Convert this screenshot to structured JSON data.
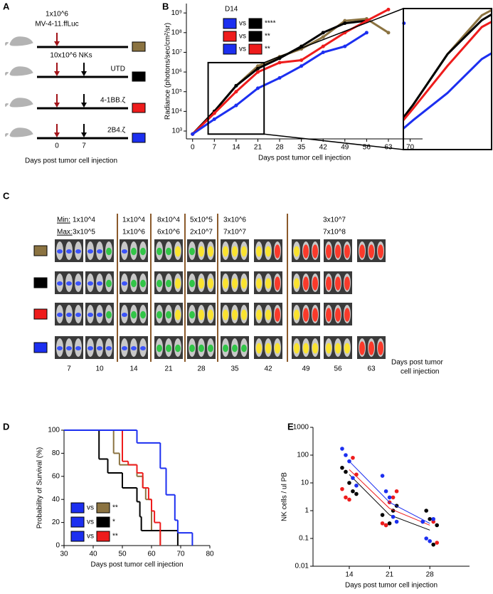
{
  "panel_labels": [
    "A",
    "B",
    "C",
    "D",
    "E"
  ],
  "schematic": {
    "dose": "1x10^6",
    "tumor": "MV-4-11.ffLuc",
    "rows": [
      {
        "label": "10x10^6 NKs",
        "color": "#8b7341"
      },
      {
        "label": "UTD",
        "color": "#000000"
      },
      {
        "label": "4-1BB.ζ",
        "color": "#ee1c1c"
      },
      {
        "label": "2B4.ζ",
        "color": "#1c2ff0"
      }
    ],
    "ticks": [
      "0",
      "7"
    ],
    "x_label": "Days post tumor cell injection"
  },
  "imaging": {
    "min_label": "Min:",
    "max_label": "Max:",
    "scales": [
      {
        "min": "1x10^4",
        "max": "3x10^5"
      },
      {
        "min": "1x10^4",
        "max": "1x10^6"
      },
      {
        "min": "8x10^4",
        "max": "6x10^6"
      },
      {
        "min": "5x10^5",
        "max": "2x10^7"
      },
      {
        "min": "3x10^6",
        "max": "7x10^7"
      },
      {
        "min": "3x10^7",
        "max": "7x10^8"
      }
    ],
    "days": [
      "7",
      "10",
      "14",
      "21",
      "28",
      "35",
      "42",
      "49",
      "56",
      "63"
    ],
    "row_colors": [
      "#8b7341",
      "#000000",
      "#ee1c1c",
      "#1c2ff0"
    ],
    "x_label": [
      "Days post tumor",
      "cell injection"
    ]
  },
  "chart_data": [
    {
      "type": "line",
      "y_label": "Radiance (photons/sec/cm²/sr)",
      "x_label": "Days post tumor cell injection",
      "x": [
        0,
        7,
        14,
        21,
        28,
        35,
        42,
        49,
        56,
        63,
        68
      ],
      "series": [
        {
          "color": "#8b7341",
          "values": [
            700,
            10000,
            200000,
            2000000,
            6000000,
            15000000,
            60000000,
            400000000,
            500000000,
            100000000,
            null
          ]
        },
        {
          "color": "#000000",
          "values": [
            700,
            10000,
            200000,
            1500000,
            5000000,
            20000000,
            100000000,
            300000000,
            400000000,
            null,
            null
          ]
        },
        {
          "color": "#ee1c1c",
          "values": [
            700,
            8000,
            100000,
            1000000,
            3000000,
            4000000,
            20000000,
            100000000,
            400000000,
            1500000000,
            null
          ]
        },
        {
          "color": "#1c2ff0",
          "values": [
            700,
            4000,
            20000,
            150000,
            500000,
            2000000,
            10000000,
            20000000,
            100000000,
            null,
            300000000
          ]
        }
      ],
      "xlim": [
        -2,
        74
      ],
      "xticks": [
        0,
        7,
        14,
        21,
        28,
        35,
        42,
        49,
        56,
        63,
        70
      ],
      "ylim": [
        400,
        3000000000
      ],
      "log_y": true,
      "yticks": [
        {
          "value": 1000,
          "label": "10³"
        },
        {
          "value": 10000,
          "label": "10⁴"
        },
        {
          "value": 100000,
          "label": "10⁵"
        },
        {
          "value": 1000000,
          "label": "10⁶"
        },
        {
          "value": 10000000,
          "label": "10⁷"
        },
        {
          "value": 100000000,
          "label": "10⁸"
        },
        {
          "value": 1000000000,
          "label": "10⁹"
        }
      ],
      "zoom_xlim": [
        5,
        23
      ],
      "zoom_ylim": [
        700,
        3000000
      ],
      "legend_title": "D14",
      "comparison_word": "vs",
      "comparisons": [
        {
          "colors": [
            "#1c2ff0",
            "#000000"
          ],
          "label": "****"
        },
        {
          "colors": [
            "#ee1c1c",
            "#000000"
          ],
          "label": "**"
        },
        {
          "colors": [
            "#1c2ff0",
            "#ee1c1c"
          ],
          "label": "**"
        }
      ]
    },
    {
      "type": "step",
      "y_label": "Probability of Survival (%)",
      "x_label": "Days post tumor cell injection",
      "xlim": [
        30,
        80
      ],
      "xticks": [
        30,
        40,
        50,
        60,
        70,
        80
      ],
      "ylim": [
        0,
        100
      ],
      "yticks": [
        0,
        20,
        40,
        60,
        80,
        100
      ],
      "series": [
        {
          "color": "#8b7341",
          "x": [
            30,
            47,
            49,
            55,
            57,
            58,
            60,
            63
          ],
          "values": [
            100,
            80,
            70,
            60,
            50,
            40,
            13,
            0
          ]
        },
        {
          "color": "#000000",
          "x": [
            30,
            42,
            45,
            50,
            55,
            56,
            56.5,
            69
          ],
          "values": [
            100,
            75,
            63,
            50,
            38,
            25,
            13,
            0
          ]
        },
        {
          "color": "#ee1c1c",
          "x": [
            30,
            50,
            52,
            55,
            57,
            59,
            60,
            61,
            63
          ],
          "values": [
            100,
            73,
            70,
            63,
            50,
            40,
            30,
            20,
            0
          ]
        },
        {
          "color": "#1c2ff0",
          "x": [
            30,
            55,
            63,
            65,
            68,
            69,
            74
          ],
          "values": [
            100,
            89,
            67,
            44,
            22,
            11,
            0
          ]
        }
      ],
      "comparison_word": "vs",
      "comparisons": [
        {
          "colors": [
            "#1c2ff0",
            "#8b7341"
          ],
          "label": "**"
        },
        {
          "colors": [
            "#1c2ff0",
            "#000000"
          ],
          "label": "*"
        },
        {
          "colors": [
            "#1c2ff0",
            "#ee1c1c"
          ],
          "label": "**"
        }
      ]
    },
    {
      "type": "scatter",
      "y_label": "NK cells / ul PB",
      "x_label": "Days post tumor cell injection",
      "xlim": [
        7.7,
        34.9
      ],
      "xticks": [
        14,
        21,
        28
      ],
      "ylim": [
        0.01,
        1000
      ],
      "log_y": true,
      "yticks": [
        0.01,
        0.1,
        1,
        10,
        100,
        1000
      ],
      "trend_x": [
        14,
        21,
        28
      ],
      "series": [
        {
          "color": "#000000",
          "x": [
            14,
            14,
            14,
            14,
            14,
            21,
            21,
            21,
            21,
            21,
            28,
            28,
            28,
            28
          ],
          "values": [
            25,
            10,
            5,
            4,
            35,
            0.3,
            0.35,
            1,
            1.5,
            0.7,
            1,
            0.5,
            0.06,
            0.3
          ],
          "trend": [
            20,
            0.7,
            0.2
          ]
        },
        {
          "color": "#ee1c1c",
          "x": [
            14,
            14,
            14,
            14,
            14,
            21,
            21,
            21,
            21,
            21,
            28,
            28,
            28
          ],
          "values": [
            80,
            20,
            6,
            3,
            2.5,
            3,
            5,
            0.35,
            0.3,
            2,
            0.4,
            0.07,
            0.4
          ],
          "trend": [
            30,
            1.2,
            0.3
          ]
        },
        {
          "color": "#1c2ff0",
          "x": [
            14,
            14,
            14,
            14,
            14,
            21,
            21,
            21,
            21,
            21,
            28,
            28,
            28,
            28
          ],
          "values": [
            170,
            100,
            60,
            15,
            8,
            18,
            5,
            3,
            0.6,
            0.4,
            0.4,
            0.1,
            0.08,
            0.5
          ],
          "trend": [
            60,
            2,
            0.35
          ]
        }
      ]
    }
  ]
}
